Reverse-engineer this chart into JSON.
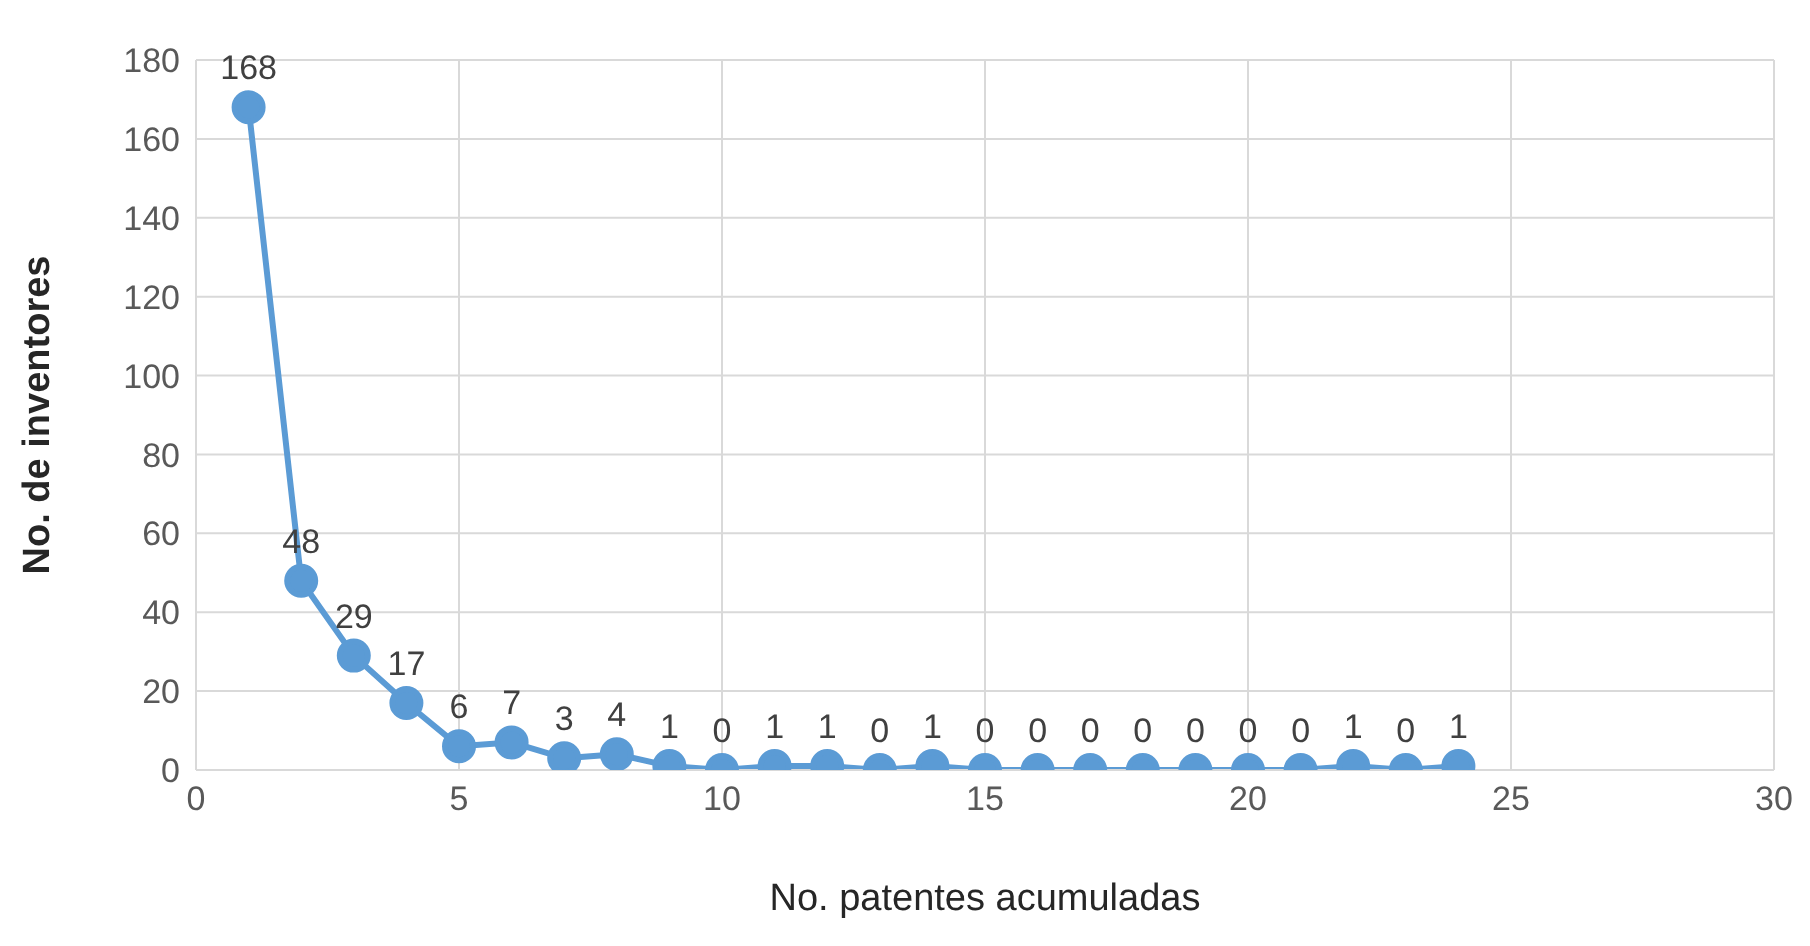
{
  "chart_data": {
    "type": "line",
    "xlabel": "No. patentes acumuladas",
    "ylabel": "No. de inventores",
    "x": [
      1,
      2,
      3,
      4,
      5,
      6,
      7,
      8,
      9,
      10,
      11,
      12,
      13,
      14,
      15,
      16,
      17,
      18,
      19,
      20,
      21,
      22,
      23,
      24
    ],
    "series": [
      {
        "color": "#5b9bd5",
        "values": [
          168,
          48,
          29,
          17,
          6,
          7,
          3,
          4,
          1,
          0,
          1,
          1,
          0,
          1,
          0,
          0,
          0,
          0,
          0,
          0,
          0,
          1,
          0,
          1
        ]
      }
    ],
    "xlim": [
      0,
      30
    ],
    "xticks": [
      0,
      5,
      10,
      15,
      20,
      25,
      30
    ],
    "ylim": [
      0,
      180
    ],
    "yticks": [
      0,
      20,
      40,
      60,
      80,
      100,
      120,
      140,
      160,
      180
    ],
    "grid": true,
    "legend": false,
    "marker": "circle",
    "line_style": "solid",
    "data_labels": true
  }
}
